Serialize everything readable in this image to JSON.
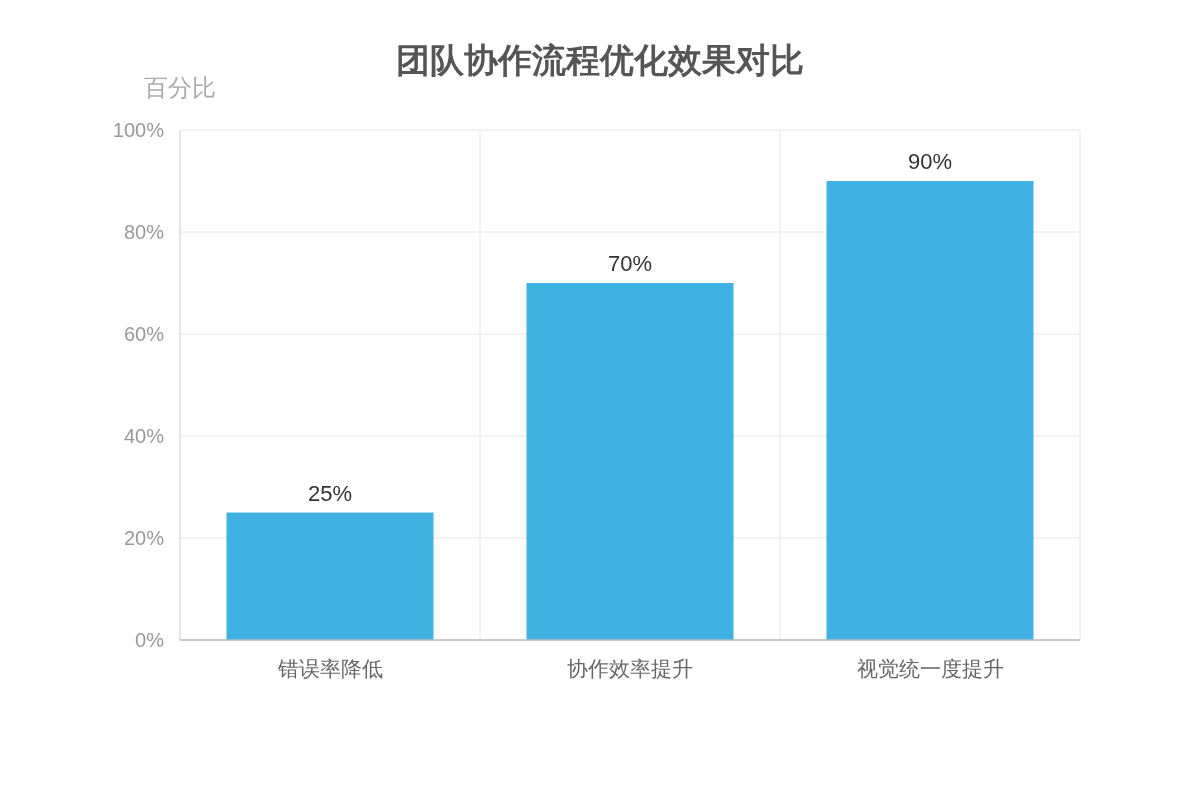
{
  "chart_data": {
    "type": "bar",
    "title": "团队协作流程优化效果对比",
    "ylabel": "百分比",
    "categories": [
      "错误率降低",
      "协作效率提升",
      "视觉统一度提升"
    ],
    "values": [
      25,
      70,
      90
    ],
    "color": "#3fb1e3",
    "value_labels": [
      "25%",
      "70%",
      "90%"
    ],
    "ylim": [
      0,
      100
    ],
    "yticks": [
      {
        "value": 0,
        "label": "0%"
      },
      {
        "value": 20,
        "label": "20%"
      },
      {
        "value": 40,
        "label": "40%"
      },
      {
        "value": 60,
        "label": "60%"
      },
      {
        "value": 80,
        "label": "80%"
      },
      {
        "value": 100,
        "label": "100%"
      }
    ],
    "grid": true
  }
}
